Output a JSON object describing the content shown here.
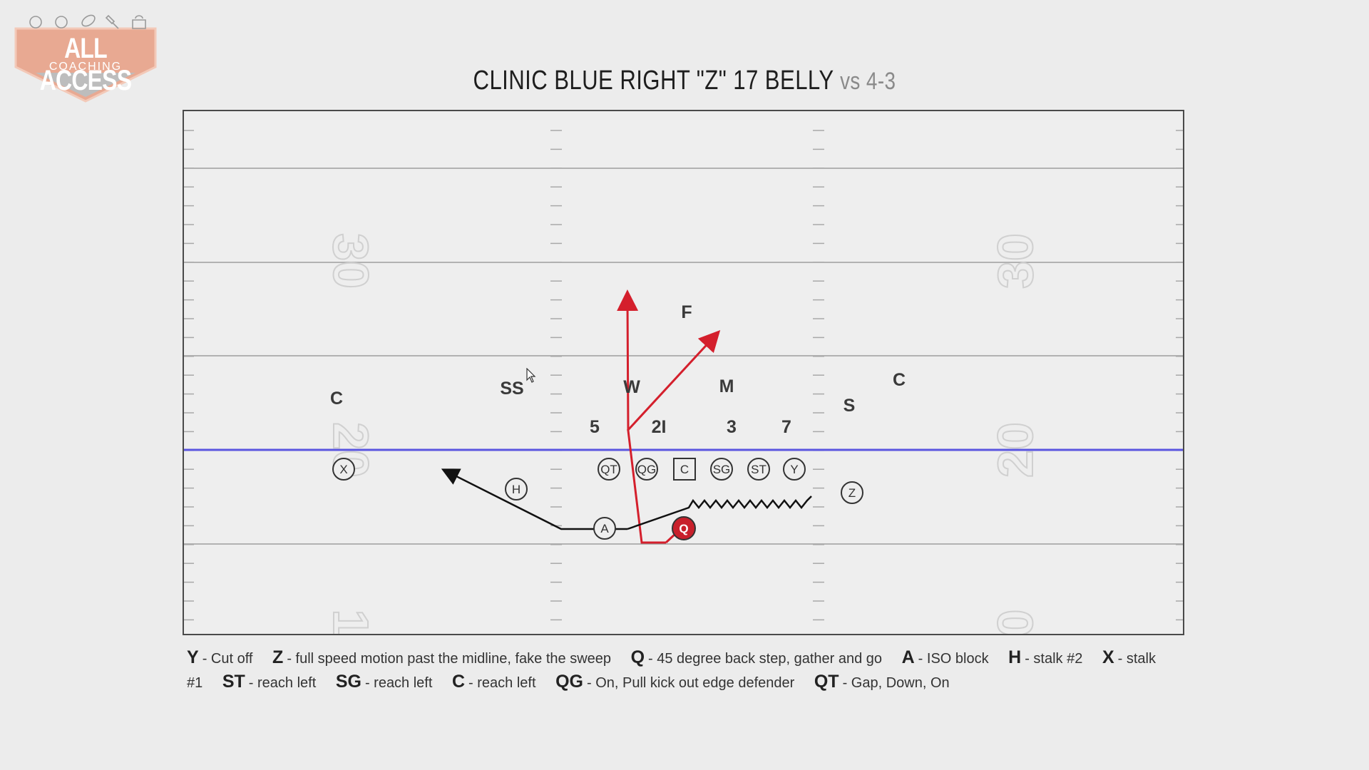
{
  "logo": {
    "line1": "ALL ACCESS",
    "line2": "COACHING",
    "icons": [
      "baseball-icon",
      "volleyball-icon",
      "football-icon",
      "lacrosse-icon",
      "kettlebell-icon"
    ],
    "colors": {
      "accent": "#e8a992",
      "shield": "#bdbdbd"
    }
  },
  "title": {
    "main": "CLINIC BLUE RIGHT \"Z\" 17 BELLY",
    "vs": "vs 4-3"
  },
  "field": {
    "yard_numbers": {
      "left_top": "30",
      "left_mid": "20",
      "left_bottom": "1",
      "right_top": "30",
      "right_mid": "20",
      "right_bottom": "0"
    },
    "colors": {
      "line_of_scrimmage": "#5a55e0",
      "red_route": "#d41f2c",
      "black_route": "#111111",
      "qb_fill": "#c8202b"
    }
  },
  "defense": [
    {
      "id": "def-c-left",
      "label": "C"
    },
    {
      "id": "def-ss",
      "label": "SS"
    },
    {
      "id": "def-w",
      "label": "W"
    },
    {
      "id": "def-f",
      "label": "F"
    },
    {
      "id": "def-m",
      "label": "M"
    },
    {
      "id": "def-c-right",
      "label": "C"
    },
    {
      "id": "def-s",
      "label": "S"
    },
    {
      "id": "def-5",
      "label": "5"
    },
    {
      "id": "def-2i",
      "label": "2I"
    },
    {
      "id": "def-3",
      "label": "3"
    },
    {
      "id": "def-7",
      "label": "7"
    }
  ],
  "offense": [
    {
      "id": "off-x",
      "label": "X"
    },
    {
      "id": "off-h",
      "label": "H"
    },
    {
      "id": "off-qt",
      "label": "QT"
    },
    {
      "id": "off-qg",
      "label": "QG"
    },
    {
      "id": "off-c",
      "label": "C"
    },
    {
      "id": "off-sg",
      "label": "SG"
    },
    {
      "id": "off-st",
      "label": "ST"
    },
    {
      "id": "off-y",
      "label": "Y"
    },
    {
      "id": "off-z",
      "label": "Z"
    },
    {
      "id": "off-a",
      "label": "A"
    },
    {
      "id": "off-q",
      "label": "Q"
    }
  ],
  "legend": [
    {
      "key": "Y",
      "text": "- Cut off"
    },
    {
      "key": "Z",
      "text": "- full speed motion past the midline, fake the sweep"
    },
    {
      "key": "Q",
      "text": "- 45 degree back step, gather and go"
    },
    {
      "key": "A",
      "text": "- ISO block"
    },
    {
      "key": "H",
      "text": "- stalk #2"
    },
    {
      "key": "X",
      "text": "- stalk #1"
    },
    {
      "key": "ST",
      "text": "- reach left"
    },
    {
      "key": "SG",
      "text": "- reach left"
    },
    {
      "key": "C",
      "text": "- reach left"
    },
    {
      "key": "QG",
      "text": "- On, Pull kick out edge defender"
    },
    {
      "key": "QT",
      "text": "- Gap, Down, On"
    }
  ]
}
